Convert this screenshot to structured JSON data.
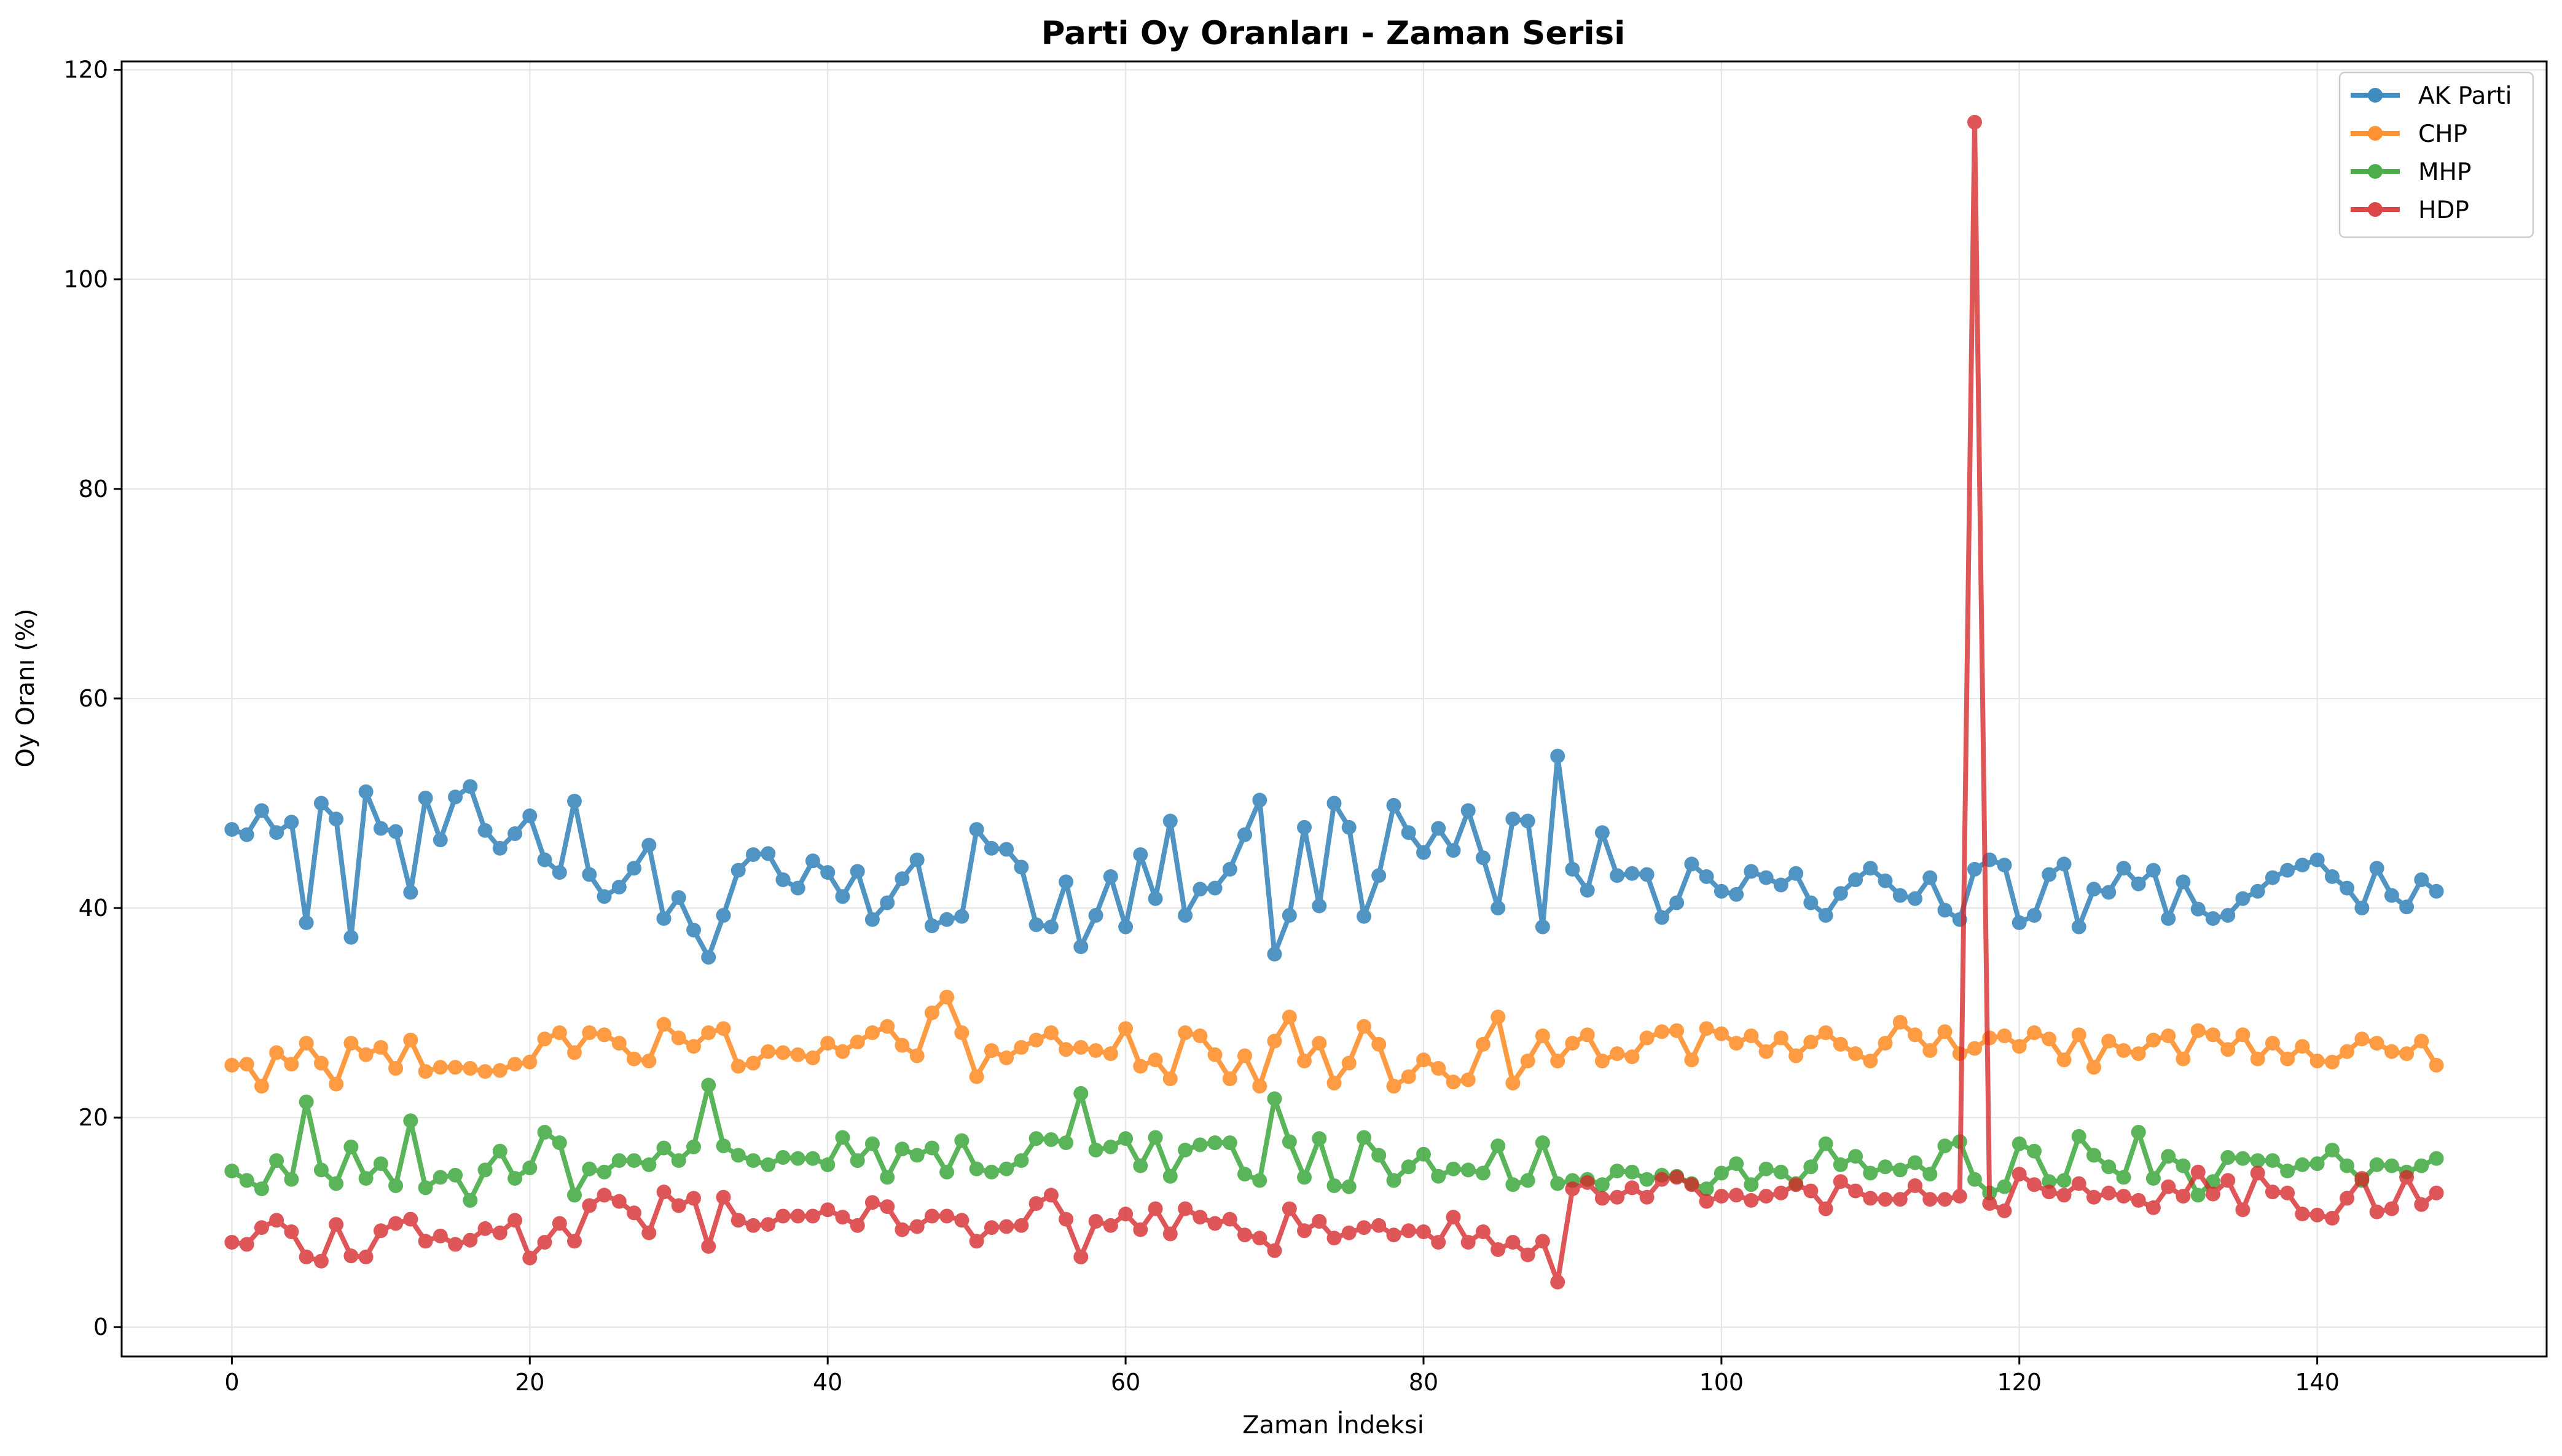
{
  "chart_data": {
    "type": "line",
    "title": "Parti Oy Oranları - Zaman Serisi",
    "xlabel": "Zaman İndeksi",
    "ylabel": "Oy Oranı (%)",
    "xlim": [
      -7.4,
      155.4
    ],
    "ylim": [
      -2.8,
      120.8
    ],
    "xticks": [
      0,
      20,
      40,
      60,
      80,
      100,
      120,
      140
    ],
    "yticks": [
      0,
      20,
      40,
      60,
      80,
      100,
      120
    ],
    "grid": true,
    "legend_position": "top-right",
    "series": [
      {
        "name": "AK Parti",
        "color": "#1f77b4",
        "values": [
          47.5,
          47.0,
          49.3,
          47.2,
          48.2,
          38.6,
          50.0,
          48.5,
          37.2,
          51.1,
          47.6,
          47.3,
          41.5,
          50.5,
          46.5,
          50.6,
          51.6,
          47.4,
          45.7,
          47.1,
          48.8,
          44.6,
          43.4,
          50.2,
          43.2,
          41.1,
          42.0,
          43.8,
          46.0,
          39.0,
          41.0,
          37.9,
          35.3,
          39.3,
          43.6,
          45.1,
          45.2,
          42.7,
          41.9,
          44.5,
          43.4,
          41.1,
          43.5,
          38.9,
          40.5,
          42.8,
          44.6,
          38.3,
          38.9,
          39.2,
          47.5,
          45.7,
          45.6,
          43.9,
          38.4,
          38.2,
          42.5,
          36.3,
          39.3,
          43.0,
          38.2,
          45.1,
          40.9,
          48.3,
          39.3,
          41.8,
          41.9,
          43.7,
          47.0,
          50.3,
          35.6,
          39.3,
          47.7,
          40.2,
          50.0,
          47.7,
          39.2,
          43.1,
          49.8,
          47.2,
          45.3,
          47.6,
          45.5,
          49.3,
          44.8,
          40.0,
          48.5,
          48.3,
          38.2,
          54.5,
          43.7,
          41.7,
          47.2,
          43.1,
          43.3,
          43.2,
          39.1,
          40.5,
          44.2,
          43.0,
          41.6,
          41.3,
          43.5,
          42.9,
          42.2,
          43.3,
          40.5,
          39.3,
          41.4,
          42.7,
          43.8,
          42.6,
          41.2,
          40.9,
          42.9,
          39.8,
          38.9,
          43.7,
          44.6,
          44.1,
          38.6,
          39.3,
          43.2,
          44.2,
          38.2,
          41.8,
          41.5,
          43.8,
          42.3,
          43.6,
          39.0,
          42.5,
          39.9,
          39.0,
          39.3,
          40.9,
          41.6,
          42.9,
          43.6,
          44.1,
          44.6,
          43.0,
          41.9,
          40.0,
          43.8,
          41.2,
          40.1,
          42.7,
          41.6
        ]
      },
      {
        "name": "CHP",
        "color": "#ff7f0e",
        "values": [
          25.0,
          25.1,
          23.0,
          26.2,
          25.1,
          27.1,
          25.2,
          23.2,
          27.1,
          26.0,
          26.7,
          24.7,
          27.4,
          24.4,
          24.8,
          24.8,
          24.7,
          24.4,
          24.5,
          25.1,
          25.3,
          27.5,
          28.1,
          26.2,
          28.1,
          27.9,
          27.1,
          25.6,
          25.4,
          28.9,
          27.6,
          26.8,
          28.1,
          28.5,
          24.9,
          25.2,
          26.3,
          26.2,
          26.0,
          25.7,
          27.1,
          26.3,
          27.2,
          28.1,
          28.7,
          26.9,
          25.9,
          30.0,
          31.5,
          28.1,
          23.9,
          26.4,
          25.7,
          26.7,
          27.4,
          28.1,
          26.5,
          26.7,
          26.4,
          26.1,
          28.5,
          24.9,
          25.5,
          23.7,
          28.1,
          27.8,
          26.0,
          23.7,
          25.9,
          23.0,
          27.3,
          29.6,
          25.4,
          27.1,
          23.3,
          25.2,
          28.7,
          27.0,
          23.0,
          23.9,
          25.5,
          24.7,
          23.4,
          23.6,
          27.0,
          29.6,
          23.3,
          25.4,
          27.8,
          25.4,
          27.1,
          27.9,
          25.4,
          26.1,
          25.8,
          27.6,
          28.2,
          28.3,
          25.5,
          28.5,
          28.0,
          27.1,
          27.8,
          26.3,
          27.6,
          25.9,
          27.2,
          28.1,
          27.0,
          26.1,
          25.4,
          27.1,
          29.1,
          27.9,
          26.4,
          28.2,
          26.1,
          26.6,
          27.6,
          27.8,
          26.8,
          28.1,
          27.5,
          25.5,
          27.9,
          24.8,
          27.3,
          26.4,
          26.1,
          27.4,
          27.8,
          25.6,
          28.3,
          27.9,
          26.5,
          27.9,
          25.6,
          27.1,
          25.6,
          26.8,
          25.4,
          25.3,
          26.3,
          27.5,
          27.1,
          26.3,
          26.1,
          27.3,
          25.0
        ]
      },
      {
        "name": "MHP",
        "color": "#2ca02c",
        "values": [
          14.9,
          14.0,
          13.2,
          15.9,
          14.1,
          21.5,
          15.0,
          13.7,
          17.2,
          14.2,
          15.6,
          13.5,
          19.7,
          13.3,
          14.3,
          14.5,
          12.1,
          15.0,
          16.8,
          14.2,
          15.2,
          18.6,
          17.6,
          12.6,
          15.1,
          14.8,
          15.9,
          15.9,
          15.5,
          17.1,
          15.9,
          17.2,
          23.1,
          17.3,
          16.4,
          15.9,
          15.5,
          16.2,
          16.1,
          16.1,
          15.5,
          18.1,
          15.9,
          17.5,
          14.3,
          17.0,
          16.4,
          17.1,
          14.8,
          17.8,
          15.1,
          14.8,
          15.1,
          15.9,
          18.0,
          17.9,
          17.6,
          22.3,
          16.9,
          17.2,
          18.0,
          15.4,
          18.1,
          14.4,
          16.9,
          17.4,
          17.6,
          17.6,
          14.6,
          14.0,
          21.8,
          17.7,
          14.3,
          18.0,
          13.5,
          13.4,
          18.1,
          16.4,
          14.0,
          15.3,
          16.5,
          14.4,
          15.1,
          15.0,
          14.7,
          17.3,
          13.6,
          14.0,
          17.6,
          13.7,
          14.0,
          14.1,
          13.6,
          14.9,
          14.8,
          14.1,
          14.5,
          14.4,
          13.7,
          13.2,
          14.7,
          15.6,
          13.6,
          15.1,
          14.8,
          13.7,
          15.3,
          17.5,
          15.5,
          16.3,
          14.7,
          15.3,
          15.0,
          15.7,
          14.6,
          17.3,
          17.7,
          14.1,
          12.8,
          13.4,
          17.5,
          16.8,
          13.9,
          14.0,
          18.2,
          16.4,
          15.3,
          14.3,
          18.6,
          14.2,
          16.3,
          15.4,
          12.6,
          13.9,
          16.2,
          16.1,
          15.9,
          15.9,
          14.9,
          15.5,
          15.6,
          16.9,
          15.4,
          14.0,
          15.5,
          15.4,
          14.8,
          15.4,
          16.1
        ]
      },
      {
        "name": "HDP",
        "color": "#d62728",
        "values": [
          8.1,
          7.9,
          9.5,
          10.2,
          9.1,
          6.7,
          6.3,
          9.8,
          6.8,
          6.7,
          9.2,
          9.9,
          10.3,
          8.2,
          8.7,
          7.9,
          8.3,
          9.4,
          9.0,
          10.2,
          6.6,
          8.1,
          9.9,
          8.2,
          11.6,
          12.6,
          12.0,
          10.9,
          9.0,
          12.9,
          11.6,
          12.3,
          7.7,
          12.4,
          10.2,
          9.7,
          9.8,
          10.6,
          10.6,
          10.6,
          11.2,
          10.5,
          9.7,
          11.9,
          11.5,
          9.3,
          9.6,
          10.6,
          10.6,
          10.2,
          8.2,
          9.5,
          9.6,
          9.7,
          11.8,
          12.6,
          10.3,
          6.7,
          10.1,
          9.7,
          10.8,
          9.3,
          11.3,
          8.9,
          11.3,
          10.5,
          9.9,
          10.3,
          8.8,
          8.5,
          7.3,
          11.3,
          9.2,
          10.1,
          8.5,
          9.0,
          9.5,
          9.7,
          8.8,
          9.2,
          9.1,
          8.1,
          10.5,
          8.1,
          9.1,
          7.4,
          8.1,
          6.9,
          8.2,
          4.3,
          13.2,
          13.8,
          12.3,
          12.4,
          13.3,
          12.4,
          14.1,
          14.3,
          13.6,
          12.0,
          12.5,
          12.6,
          12.1,
          12.5,
          12.8,
          13.6,
          13.0,
          11.3,
          13.9,
          13.0,
          12.3,
          12.2,
          12.2,
          13.5,
          12.2,
          12.2,
          12.5,
          115.0,
          11.8,
          11.1,
          14.6,
          13.6,
          12.9,
          12.6,
          13.7,
          12.4,
          12.8,
          12.5,
          12.1,
          11.4,
          13.4,
          12.5,
          14.8,
          12.7,
          14.0,
          11.2,
          14.7,
          12.9,
          12.8,
          10.8,
          10.7,
          10.4,
          12.3,
          14.2,
          11.0,
          11.3,
          14.3,
          11.7,
          12.8
        ]
      }
    ]
  }
}
